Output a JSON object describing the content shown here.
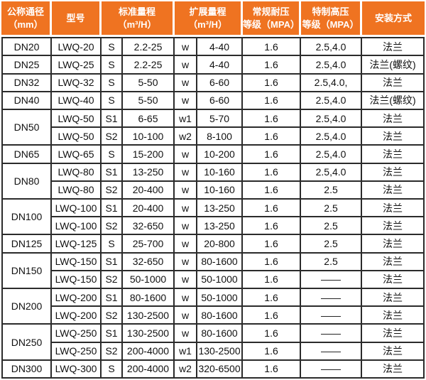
{
  "colors": {
    "header_bg": "#EF7321",
    "header_text": "#FFFFFF",
    "header_divider": "#FFFFFF",
    "border_dark": "#2B2B2B",
    "body_text": "#111111",
    "body_bg": "#FFFFFF"
  },
  "chart_data": {
    "type": "table",
    "legend": "none",
    "grid": "on",
    "columns": [
      {
        "id": "dn",
        "label": "公称通径\n（mm）"
      },
      {
        "id": "model",
        "label": "型号"
      },
      {
        "id": "std",
        "label": "标准量程\n（m³/H）",
        "colspan": "2"
      },
      {
        "id": "ext",
        "label": "扩展量程\n（m³/H）",
        "colspan": "2"
      },
      {
        "id": "pressure",
        "label": "常规耐压\n等级（MPA）"
      },
      {
        "id": "high_pressure",
        "label": "特制高压\n等级（MPA）"
      },
      {
        "id": "install",
        "label": "安装方式"
      }
    ],
    "rows": [
      {
        "dn": "DN20",
        "dn_rowspan": 1,
        "model": "LWQ-20",
        "std_code": "S",
        "std_range": "2.2-25",
        "ext_code": "w",
        "ext_range": "4-40",
        "pressure": "1.6",
        "high_pressure": "2.5,4.0",
        "install": "法兰"
      },
      {
        "dn": "DN25",
        "dn_rowspan": 1,
        "model": "LWQ-25",
        "std_code": "S",
        "std_range": "2.2-25",
        "ext_code": "w",
        "ext_range": "4-40",
        "pressure": "1.6",
        "high_pressure": "2.5,4.0",
        "install": "法兰(螺纹)"
      },
      {
        "dn": "DN32",
        "dn_rowspan": 1,
        "model": "LWQ-32",
        "std_code": "S",
        "std_range": "5-50",
        "ext_code": "w",
        "ext_range": "6-60",
        "pressure": "1.6",
        "high_pressure": "2.5,4.0,",
        "install": "法兰"
      },
      {
        "dn": "DN40",
        "dn_rowspan": 1,
        "model": "LWQ-40",
        "std_code": "S",
        "std_range": "5-50",
        "ext_code": "w",
        "ext_range": "6-60",
        "pressure": "1.6",
        "high_pressure": "2.5,4.0",
        "install": "法兰(螺纹)"
      },
      {
        "dn": "DN50",
        "dn_rowspan": 2,
        "model": "LWQ-50",
        "std_code": "S1",
        "std_range": "6-65",
        "ext_code": "w1",
        "ext_range": "5-70",
        "pressure": "1.6",
        "high_pressure": "2.5,4.0",
        "install": "法兰"
      },
      {
        "dn": null,
        "model": "LWQ-50",
        "std_code": "S2",
        "std_range": "10-100",
        "ext_code": "w2",
        "ext_range": "8-100",
        "pressure": "1.6",
        "high_pressure": "2.5,4.0",
        "install": "法兰"
      },
      {
        "dn": "DN65",
        "dn_rowspan": 1,
        "model": "LWQ-65",
        "std_code": "S",
        "std_range": "15-200",
        "ext_code": "w",
        "ext_range": "10-200",
        "pressure": "1.6",
        "high_pressure": "2.5,4.0",
        "install": "法兰"
      },
      {
        "dn": "DN80",
        "dn_rowspan": 2,
        "model": "LWQ-80",
        "std_code": "S1",
        "std_range": "13-250",
        "ext_code": "w",
        "ext_range": "10-160",
        "pressure": "1.6",
        "high_pressure": "2.5,4.0",
        "install": "法兰"
      },
      {
        "dn": null,
        "model": "LWQ-80",
        "std_code": "S2",
        "std_range": "20-400",
        "ext_code": "w",
        "ext_range": "10-160",
        "pressure": "1.6",
        "high_pressure": "2.5",
        "install": "法兰"
      },
      {
        "dn": "DN100",
        "dn_rowspan": 2,
        "model": "LWQ-100",
        "std_code": "S1",
        "std_range": "20-400",
        "ext_code": "w",
        "ext_range": "13-250",
        "pressure": "1.6",
        "high_pressure": "2.5",
        "install": "法兰"
      },
      {
        "dn": null,
        "model": "LWQ-100",
        "std_code": "S2",
        "std_range": "32-650",
        "ext_code": "w",
        "ext_range": "13-250",
        "pressure": "1.6",
        "high_pressure": "2.5",
        "install": "法兰"
      },
      {
        "dn": "DN125",
        "dn_rowspan": 1,
        "model": "LWQ-125",
        "std_code": "S",
        "std_range": "25-700",
        "ext_code": "w",
        "ext_range": "20-800",
        "pressure": "1.6",
        "high_pressure": "2.5",
        "install": "法兰"
      },
      {
        "dn": "DN150",
        "dn_rowspan": 2,
        "model": "LWQ-150",
        "std_code": "S1",
        "std_range": "32-650",
        "ext_code": "w",
        "ext_range": "80-1600",
        "pressure": "1.6",
        "high_pressure": "2.5",
        "install": "法兰"
      },
      {
        "dn": null,
        "model": "LWQ-150",
        "std_code": "S2",
        "std_range": "50-1000",
        "ext_code": "w",
        "ext_range": "50-1000",
        "pressure": "1.6",
        "high_pressure": "——",
        "install": "法兰"
      },
      {
        "dn": "DN200",
        "dn_rowspan": 2,
        "model": "LWQ-200",
        "std_code": "S1",
        "std_range": "80-1600",
        "ext_code": "w",
        "ext_range": "50-1000",
        "pressure": "1.6",
        "high_pressure": "——",
        "install": "法兰"
      },
      {
        "dn": null,
        "model": "LWQ-200",
        "std_code": "S2",
        "std_range": "130-2500",
        "ext_code": "w",
        "ext_range": "80-1600",
        "pressure": "1.6",
        "high_pressure": "——",
        "install": "法兰"
      },
      {
        "dn": "DN250",
        "dn_rowspan": 2,
        "model": "LWQ-250",
        "std_code": "S1",
        "std_range": "130-2500",
        "ext_code": "w",
        "ext_range": "80-1600",
        "pressure": "1.6",
        "high_pressure": "——",
        "install": "法兰"
      },
      {
        "dn": null,
        "model": "LWQ-250",
        "std_code": "S2",
        "std_range": "200-4000",
        "ext_code": "w1",
        "ext_range": "130-2500",
        "pressure": "1.6",
        "high_pressure": "——",
        "install": "法兰"
      },
      {
        "dn": "DN300",
        "dn_rowspan": 1,
        "model": "LWQ-300",
        "std_code": "S",
        "std_range": "200-4000",
        "ext_code": "w2",
        "ext_range": "320-6500",
        "pressure": "1.6",
        "high_pressure": "——",
        "install": "法兰"
      }
    ]
  }
}
